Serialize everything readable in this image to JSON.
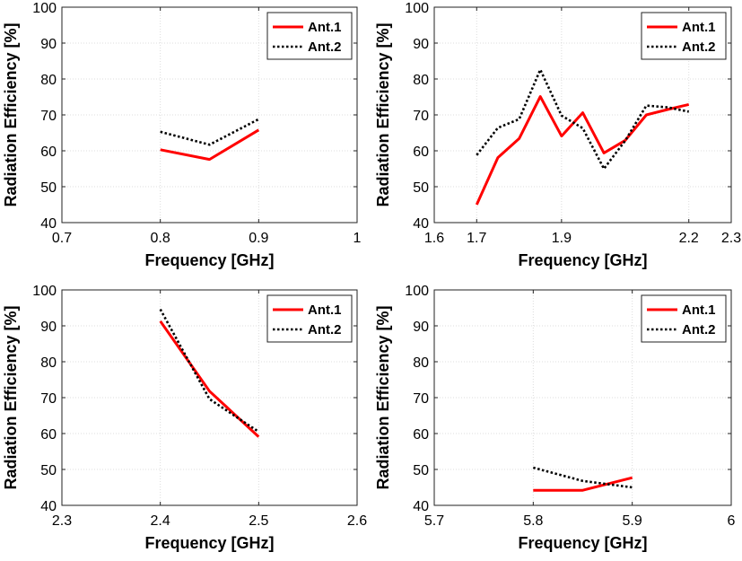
{
  "chart_data": [
    {
      "type": "line",
      "title": "",
      "xlabel": "Frequency [GHz]",
      "ylabel": "Radiation Efficiency [%]",
      "xlim": [
        0.7,
        1.0
      ],
      "ylim": [
        40,
        100
      ],
      "xticks": [
        0.7,
        0.8,
        0.9,
        1
      ],
      "xtick_labels": [
        "0.7",
        "0.8",
        "0.9",
        "1"
      ],
      "yticks": [
        40,
        50,
        60,
        70,
        80,
        90,
        100
      ],
      "grid": true,
      "legend": "top-right",
      "series": [
        {
          "name": "Ant.1",
          "color": "#ff0000",
          "style": "solid",
          "x": [
            0.8,
            0.85,
            0.9
          ],
          "y": [
            60.3,
            57.6,
            65.8
          ]
        },
        {
          "name": "Ant.2",
          "color": "#000000",
          "style": "dotted",
          "x": [
            0.8,
            0.85,
            0.9
          ],
          "y": [
            65.3,
            61.7,
            68.8
          ]
        }
      ]
    },
    {
      "type": "line",
      "title": "",
      "xlabel": "Frequency [GHz]",
      "ylabel": "Radiation Efficiency [%]",
      "xlim": [
        1.6,
        2.3
      ],
      "ylim": [
        40,
        100
      ],
      "xticks": [
        1.6,
        1.7,
        1.9,
        2.2,
        2.3
      ],
      "xtick_labels": [
        "1.6",
        "1.7",
        "1.9",
        "2.2",
        "2.3"
      ],
      "yticks": [
        40,
        50,
        60,
        70,
        80,
        90,
        100
      ],
      "grid": true,
      "legend": "top-right",
      "series": [
        {
          "name": "Ant.1",
          "color": "#ff0000",
          "style": "solid",
          "x": [
            1.7,
            1.75,
            1.8,
            1.85,
            1.9,
            1.95,
            2.0,
            2.05,
            2.1,
            2.15,
            2.2
          ],
          "y": [
            45.0,
            58.1,
            63.4,
            75.1,
            64.1,
            70.6,
            59.4,
            62.9,
            70.0,
            71.5,
            72.9
          ]
        },
        {
          "name": "Ant.2",
          "color": "#000000",
          "style": "dotted",
          "x": [
            1.7,
            1.75,
            1.8,
            1.85,
            1.9,
            1.95,
            2.0,
            2.05,
            2.1,
            2.15,
            2.2
          ],
          "y": [
            58.8,
            66.4,
            68.8,
            82.6,
            69.8,
            66.3,
            55.0,
            62.8,
            72.6,
            72.1,
            70.9
          ]
        }
      ]
    },
    {
      "type": "line",
      "title": "",
      "xlabel": "Frequency [GHz]",
      "ylabel": "Radiation Efficiency [%]",
      "xlim": [
        2.3,
        2.6
      ],
      "ylim": [
        40,
        100
      ],
      "xticks": [
        2.3,
        2.4,
        2.5,
        2.6
      ],
      "xtick_labels": [
        "2.3",
        "2.4",
        "2.5",
        "2.6"
      ],
      "yticks": [
        40,
        50,
        60,
        70,
        80,
        90,
        100
      ],
      "grid": true,
      "legend": "top-right",
      "series": [
        {
          "name": "Ant.1",
          "color": "#ff0000",
          "style": "solid",
          "x": [
            2.4,
            2.45,
            2.5
          ],
          "y": [
            91.3,
            71.8,
            59.1
          ]
        },
        {
          "name": "Ant.2",
          "color": "#000000",
          "style": "dotted",
          "x": [
            2.4,
            2.45,
            2.5
          ],
          "y": [
            94.6,
            69.6,
            60.5
          ]
        }
      ]
    },
    {
      "type": "line",
      "title": "",
      "xlabel": "Frequency [GHz]",
      "ylabel": "Radiation Efficiency [%]",
      "xlim": [
        5.7,
        6.0
      ],
      "ylim": [
        40,
        100
      ],
      "xticks": [
        5.7,
        5.8,
        5.9,
        6
      ],
      "xtick_labels": [
        "5.7",
        "5.8",
        "5.9",
        "6"
      ],
      "yticks": [
        40,
        50,
        60,
        70,
        80,
        90,
        100
      ],
      "grid": true,
      "legend": "top-right",
      "series": [
        {
          "name": "Ant.1",
          "color": "#ff0000",
          "style": "solid",
          "x": [
            5.8,
            5.85,
            5.9
          ],
          "y": [
            44.2,
            44.2,
            47.7
          ]
        },
        {
          "name": "Ant.2",
          "color": "#000000",
          "style": "dotted",
          "x": [
            5.8,
            5.85,
            5.9
          ],
          "y": [
            50.5,
            46.8,
            45.0
          ]
        }
      ]
    }
  ]
}
